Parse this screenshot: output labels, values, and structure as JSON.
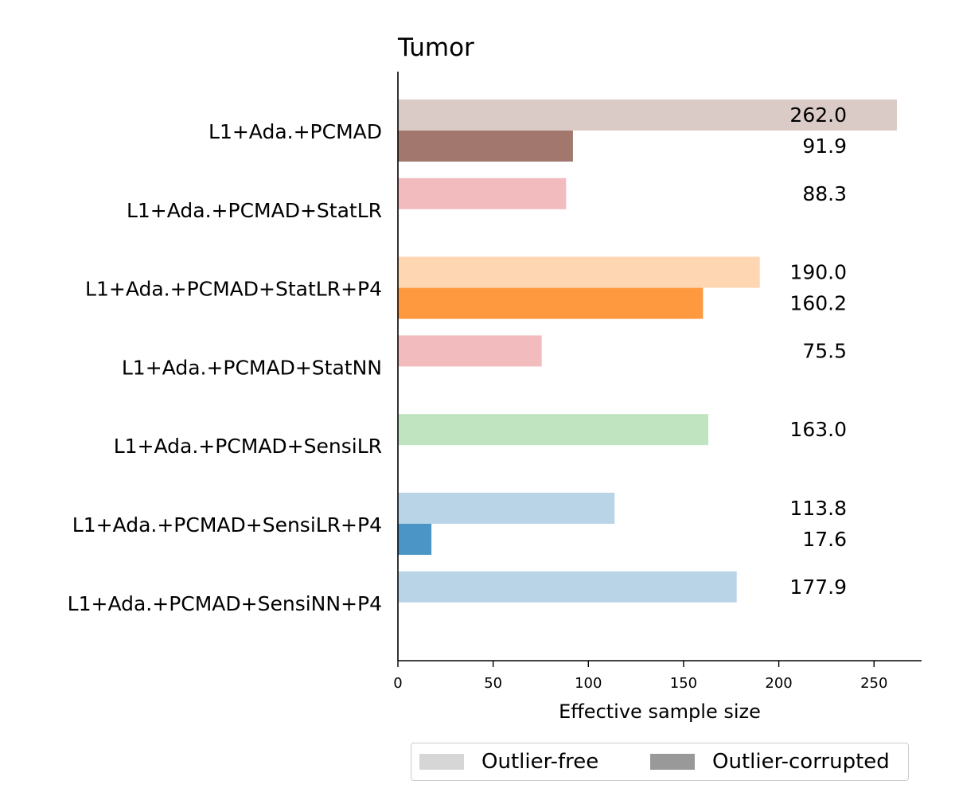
{
  "chart_data": {
    "type": "bar",
    "orientation": "horizontal",
    "title": "Tumor",
    "xlabel": "Effective sample size",
    "ylabel": "",
    "xlim": [
      0,
      275
    ],
    "xticks": [
      0,
      50,
      100,
      150,
      200,
      250
    ],
    "xtick_labels": [
      "0",
      "50",
      "100",
      "150",
      "200",
      "250"
    ],
    "categories": [
      "L1+Ada.+PCMAD",
      "L1+Ada.+PCMAD+StatLR",
      "L1+Ada.+PCMAD+StatLR+P4",
      "L1+Ada.+PCMAD+StatNN",
      "L1+Ada.+PCMAD+SensiLR",
      "L1+Ada.+PCMAD+SensiLR+P4",
      "L1+Ada.+PCMAD+SensiNN+P4"
    ],
    "series": [
      {
        "name": "Outlier-free",
        "values": [
          262.0,
          88.3,
          190.0,
          75.5,
          163.0,
          113.8,
          177.9
        ],
        "labels": [
          "262.0",
          "88.3",
          "190.0",
          "75.5",
          "163.0",
          "113.8",
          "177.9"
        ],
        "colors": [
          "#dbcbc7",
          "#f2bbbd",
          "#fed6b2",
          "#f2bbbd",
          "#c0e3c0",
          "#bad4e7",
          "#bad4e7"
        ]
      },
      {
        "name": "Outlier-corrupted",
        "values": [
          91.9,
          null,
          160.2,
          null,
          null,
          17.6,
          null
        ],
        "labels": [
          "91.9",
          null,
          "160.2",
          null,
          null,
          "17.6",
          null
        ],
        "colors": [
          "#a2776d",
          null,
          "#ff993f",
          null,
          null,
          "#4a94c6",
          null
        ]
      }
    ],
    "legend": {
      "placement": "bottom",
      "entries": [
        {
          "label": "Outlier-free",
          "color": "#d6d6d6"
        },
        {
          "label": "Outlier-corrupted",
          "color": "#999999"
        }
      ]
    },
    "grid": false
  }
}
